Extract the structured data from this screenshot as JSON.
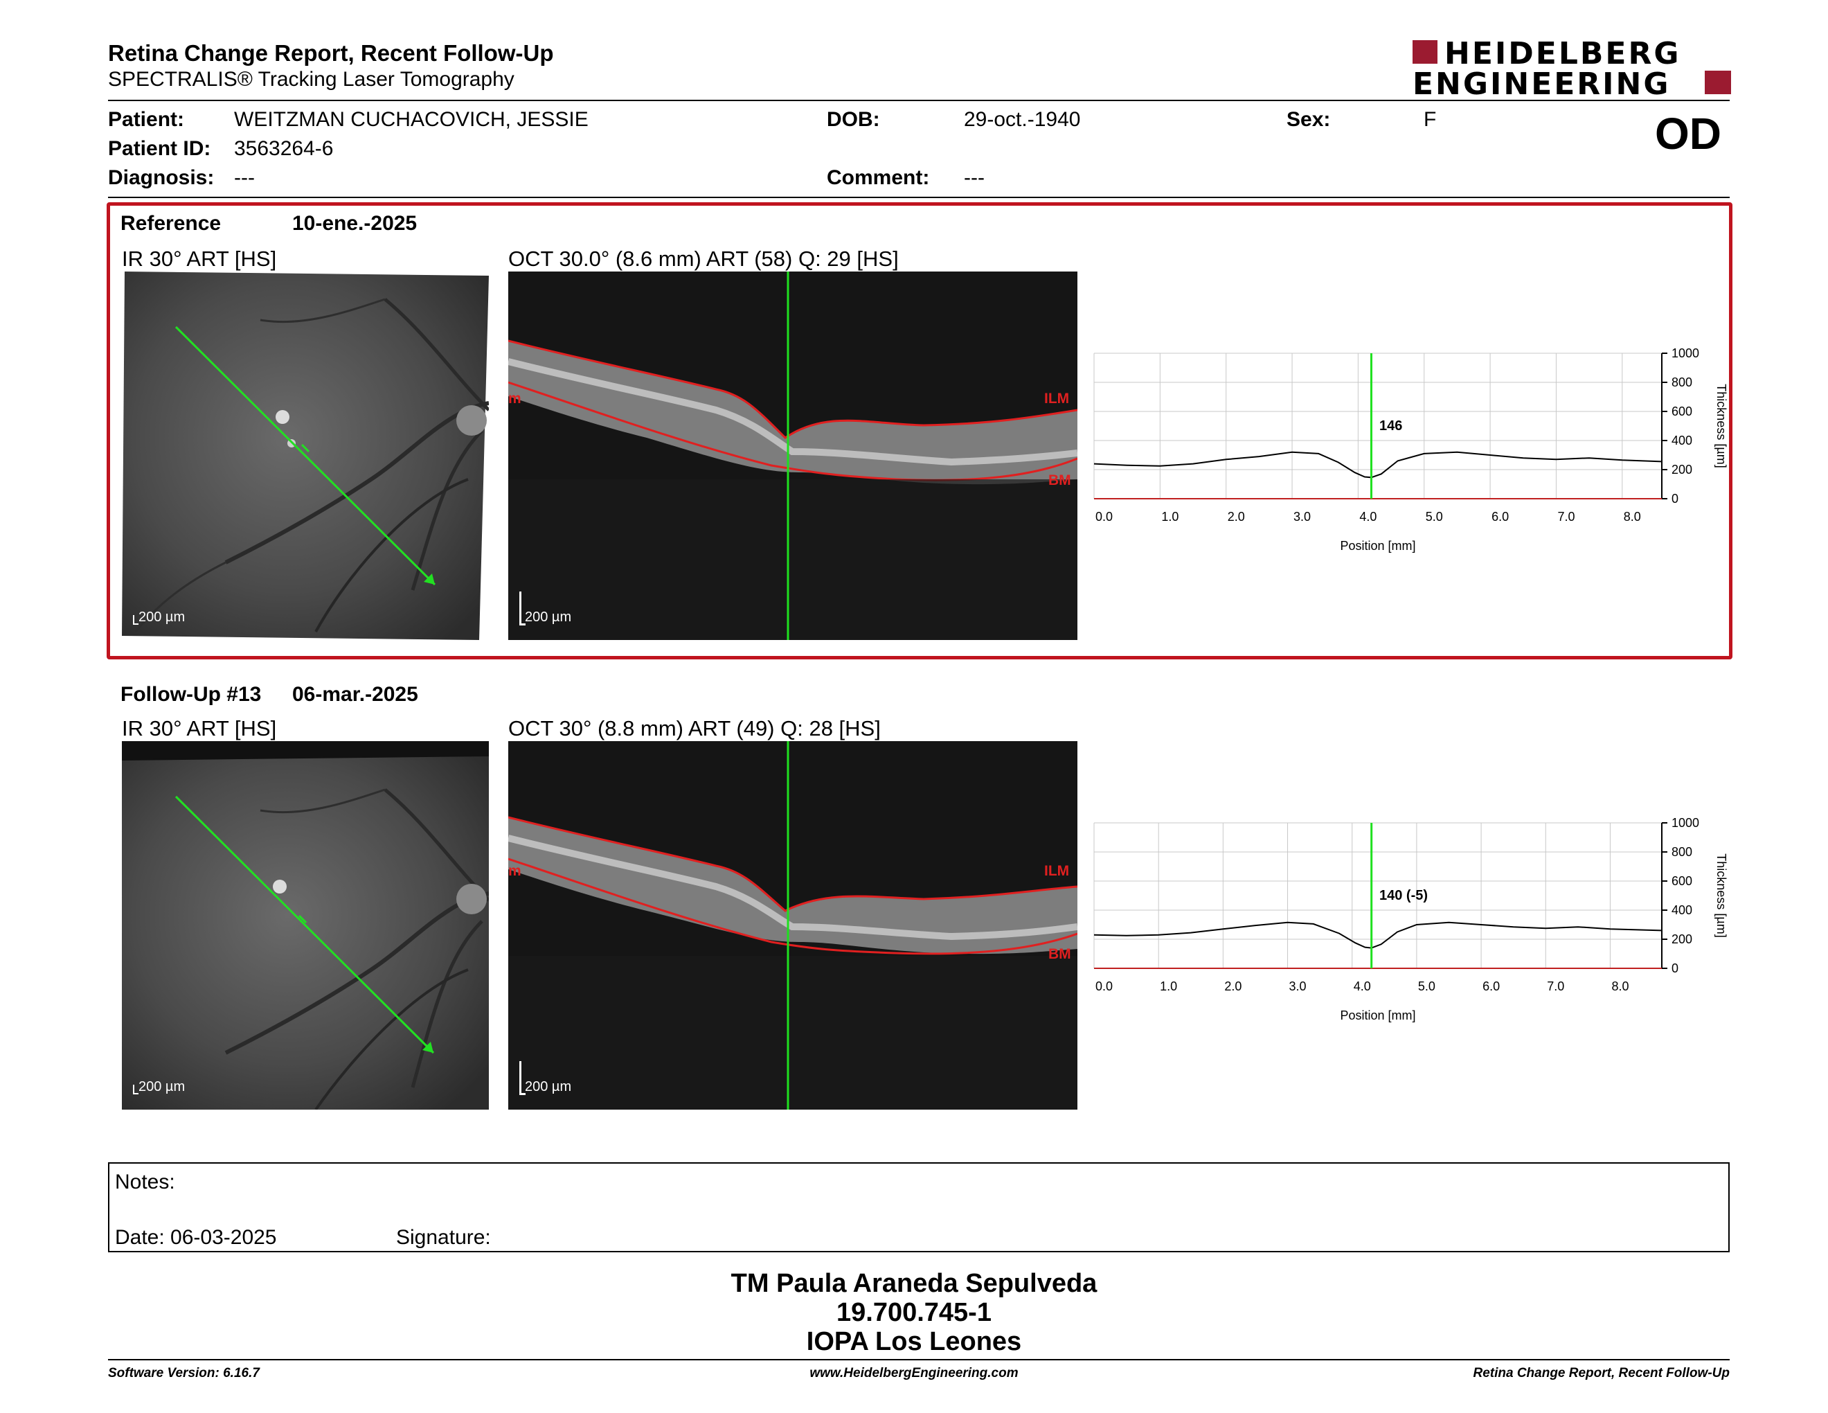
{
  "header": {
    "title": "Retina Change Report, Recent Follow-Up",
    "subtitle": "SPECTRALIS® Tracking Laser Tomography",
    "logo_line1": "HEIDELBERG",
    "logo_line2": "ENGINEERING"
  },
  "patient": {
    "patient_label": "Patient:",
    "patient_value": "WEITZMAN CUCHACOVICH, JESSIE",
    "id_label": "Patient ID:",
    "id_value": "3563264-6",
    "diagnosis_label": "Diagnosis:",
    "diagnosis_value": "---",
    "dob_label": "DOB:",
    "dob_value": "29-oct.-1940",
    "comment_label": "Comment:",
    "comment_value": "---",
    "sex_label": "Sex:",
    "sex_value": "F",
    "eye": "OD"
  },
  "reference": {
    "label": "Reference",
    "date": "10-ene.-2025",
    "ir_title": "IR 30° ART [HS]",
    "oct_title": "OCT 30.0° (8.6 mm) ART (58) Q: 29 [HS]",
    "scale_ir": "200 µm",
    "scale_oct": "200 µm",
    "ilm": "ILM",
    "bm": "BM",
    "edge_m": "m",
    "thickness_value": "146"
  },
  "followup": {
    "label": "Follow-Up #13",
    "date": "06-mar.-2025",
    "ir_title": "IR 30° ART [HS]",
    "oct_title": "OCT 30° (8.8 mm) ART (49) Q: 28 [HS]",
    "scale_ir": "200 µm",
    "scale_oct": "200 µm",
    "ilm": "ILM",
    "bm": "BM",
    "edge_m": "m",
    "thickness_value": "140 (-5)"
  },
  "chart_data": [
    {
      "type": "line",
      "xlabel": "Position [mm]",
      "ylabel": "Thickness [µm]",
      "xlim": [
        0,
        8.6
      ],
      "ylim": [
        0,
        1000
      ],
      "x_ticks": [
        "0.0",
        "1.0",
        "2.0",
        "3.0",
        "4.0",
        "5.0",
        "6.0",
        "7.0",
        "8.0"
      ],
      "y_ticks": [
        "1000",
        "800",
        "600",
        "400",
        "200",
        "0"
      ],
      "cursor_x": 4.2,
      "series": [
        {
          "x": [
            0,
            0.5,
            1.0,
            1.5,
            2.0,
            2.5,
            3.0,
            3.4,
            3.7,
            3.95,
            4.1,
            4.2,
            4.35,
            4.6,
            5.0,
            5.5,
            6.0,
            6.5,
            7.0,
            7.5,
            8.0,
            8.6
          ],
          "values": [
            240,
            230,
            225,
            240,
            270,
            290,
            320,
            310,
            250,
            180,
            150,
            146,
            170,
            260,
            310,
            320,
            300,
            280,
            270,
            280,
            265,
            255
          ]
        }
      ],
      "grid": true
    },
    {
      "type": "line",
      "xlabel": "Position [mm]",
      "ylabel": "Thickness [µm]",
      "xlim": [
        0,
        8.8
      ],
      "ylim": [
        0,
        1000
      ],
      "x_ticks": [
        "0.0",
        "1.0",
        "2.0",
        "3.0",
        "4.0",
        "5.0",
        "6.0",
        "7.0",
        "8.0"
      ],
      "y_ticks": [
        "1000",
        "800",
        "600",
        "400",
        "200",
        "0"
      ],
      "cursor_x": 4.3,
      "series": [
        {
          "x": [
            0,
            0.5,
            1.0,
            1.5,
            2.0,
            2.5,
            3.0,
            3.4,
            3.8,
            4.05,
            4.2,
            4.3,
            4.45,
            4.7,
            5.0,
            5.5,
            6.0,
            6.5,
            7.0,
            7.5,
            8.0,
            8.8
          ],
          "values": [
            230,
            225,
            230,
            245,
            270,
            295,
            315,
            305,
            240,
            175,
            145,
            140,
            165,
            250,
            300,
            315,
            300,
            285,
            275,
            285,
            270,
            260
          ]
        }
      ],
      "grid": true
    }
  ],
  "notes": {
    "notes_label": "Notes:",
    "date_label": "Date: 06-03-2025",
    "signature_label": "Signature:"
  },
  "signatory": {
    "line1": "TM Paula Araneda Sepulveda",
    "line2": "19.700.745-1",
    "line3": "IOPA Los Leones"
  },
  "footer": {
    "left": "Software Version: 6.16.7",
    "center": "www.HeidelbergEngineering.com",
    "right": "Retina Change Report, Recent Follow-Up"
  }
}
